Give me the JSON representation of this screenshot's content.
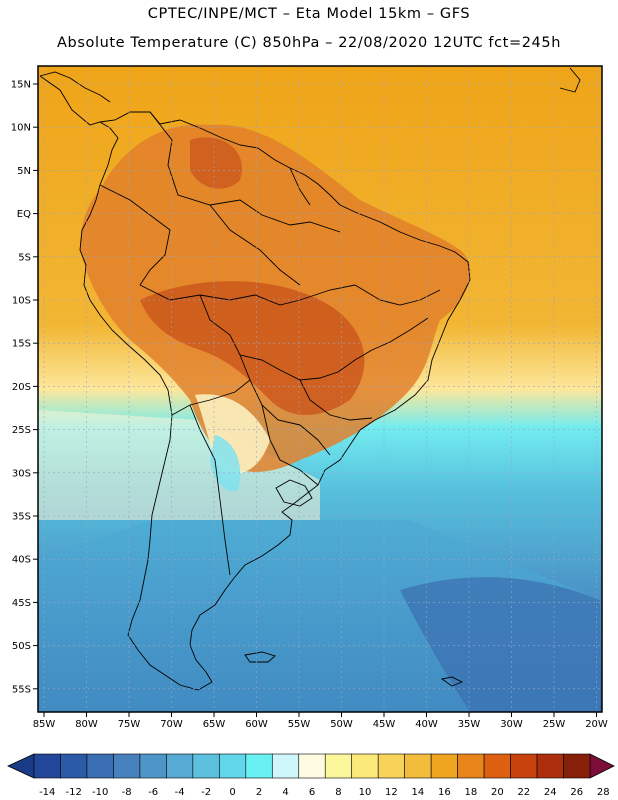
{
  "header": {
    "title_line1": "CPTEC/INPE/MCT –  Eta Model 15km – GFS",
    "title_line2": "Absolute Temperature (C) 850hPa – 22/08/2020 12UTC fct=245h"
  },
  "axes": {
    "lat_labels": [
      "15N",
      "10N",
      "5N",
      "EQ",
      "5S",
      "10S",
      "15S",
      "20S",
      "25S",
      "30S",
      "35S",
      "40S",
      "45S",
      "50S",
      "55S"
    ],
    "lon_labels": [
      "85W",
      "80W",
      "75W",
      "70W",
      "65W",
      "60W",
      "55W",
      "50W",
      "45W",
      "40W",
      "35W",
      "30W",
      "25W",
      "20W"
    ]
  },
  "colorbar": {
    "labels": [
      "-14",
      "-12",
      "-10",
      "-8",
      "-6",
      "-4",
      "-2",
      "0",
      "2",
      "4",
      "6",
      "8",
      "10",
      "12",
      "14",
      "16",
      "18",
      "20",
      "22",
      "24",
      "26",
      "28"
    ],
    "colors": [
      "#22479a",
      "#2b5aa6",
      "#3a6fb3",
      "#4782bf",
      "#4f96c8",
      "#57aad3",
      "#5cc0de",
      "#62d6ea",
      "#69f0f2",
      "#cff6fb",
      "#fffbe0",
      "#fdf79c",
      "#fbe97a",
      "#f8d35a",
      "#f2bd3c",
      "#eea41f",
      "#e8851a",
      "#dd5f11",
      "#c8420e",
      "#ad2e0c",
      "#86200b"
    ],
    "under_color": "#1a3b88",
    "over_color": "#7c0f3a"
  },
  "colors": {
    "land_border": "#000000",
    "grid": "#9aa4c8"
  }
}
